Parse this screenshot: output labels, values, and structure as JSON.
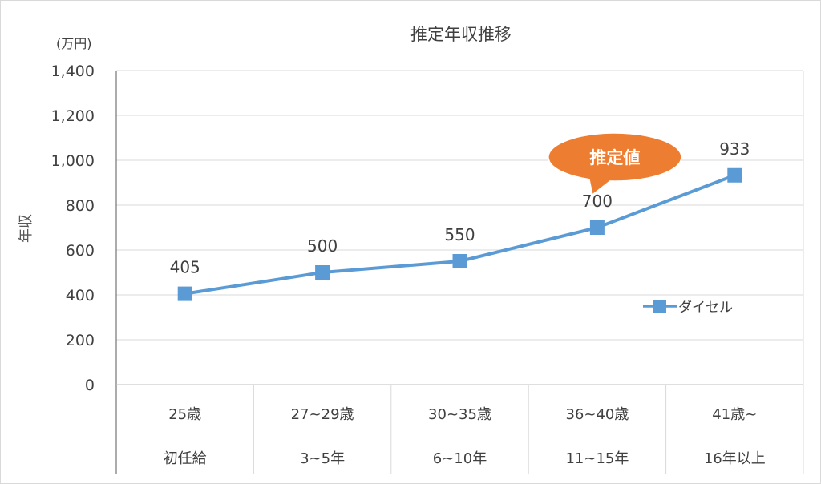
{
  "chart_data": {
    "type": "line",
    "title": "推定年収推移",
    "unit_label": "(万円)",
    "ylabel": "年収",
    "ylim": [
      0,
      1400
    ],
    "yticks": [
      0,
      200,
      400,
      600,
      800,
      1000,
      1200,
      1400
    ],
    "ytick_labels": [
      "0",
      "200",
      "400",
      "600",
      "800",
      "1,000",
      "1,200",
      "1,400"
    ],
    "grid": true,
    "legend_position": "right",
    "categories": [
      {
        "line1": "25歳",
        "line2": "初任給"
      },
      {
        "line1": "27~29歳",
        "line2": "3~5年"
      },
      {
        "line1": "30~35歳",
        "line2": "6~10年"
      },
      {
        "line1": "36~40歳",
        "line2": "11~15年"
      },
      {
        "line1": "41歳~",
        "line2": "16年以上"
      }
    ],
    "series": [
      {
        "name": "ダイセル",
        "color": "#5b9bd5",
        "values": [
          405,
          500,
          550,
          700,
          933
        ]
      }
    ],
    "data_labels": [
      "405",
      "500",
      "550",
      "700",
      "933"
    ],
    "annotation": {
      "text": "推定値",
      "color": "#ed7d31",
      "target_index": 3
    }
  }
}
